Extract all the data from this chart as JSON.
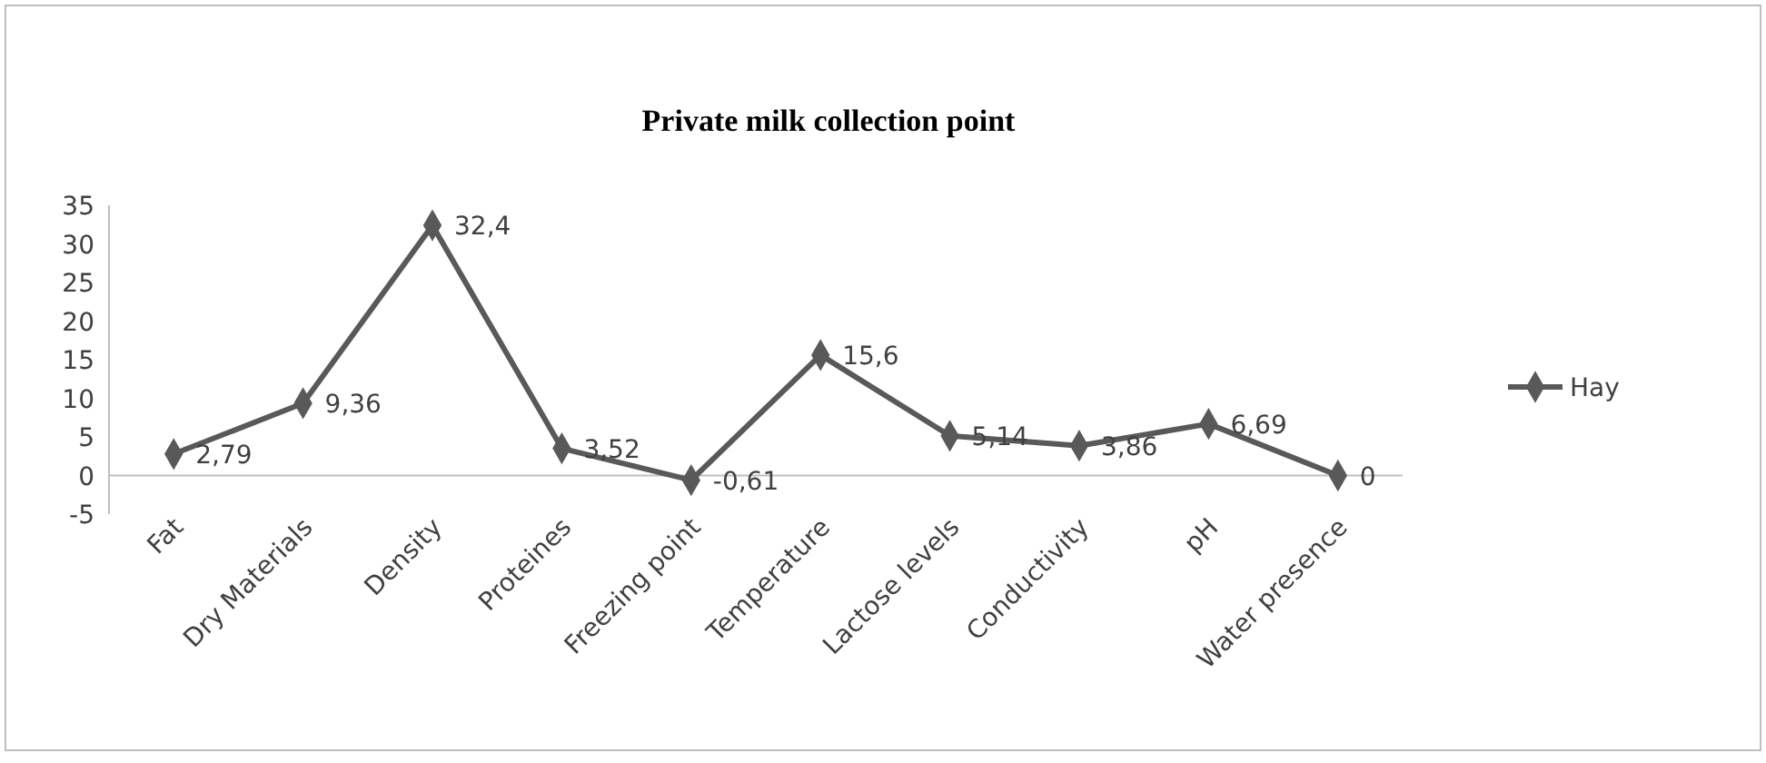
{
  "chart_data": {
    "type": "line",
    "title": "Private milk collection point",
    "categories": [
      "Fat",
      "Dry Materials",
      "Density",
      "Proteines",
      "Freezing point",
      "Temperature",
      "Lactose levels",
      "Conductivity",
      "pH",
      "Water presence"
    ],
    "series": [
      {
        "name": "Hay",
        "color": "#595959",
        "values": [
          2.79,
          9.36,
          32.4,
          3.52,
          -0.61,
          15.6,
          5.14,
          3.86,
          6.69,
          0
        ],
        "value_labels": [
          "2,79",
          "9,36",
          "32,4",
          "3,52",
          "-0,61",
          "15,6",
          "5,14",
          "3,86",
          "6,69",
          "0"
        ]
      }
    ],
    "ylim": [
      -5,
      35
    ],
    "yticks": [
      -5,
      0,
      5,
      10,
      15,
      20,
      25,
      30,
      35
    ],
    "grid": false,
    "legend": "right",
    "marker": "diamond",
    "line_style": "solid"
  }
}
